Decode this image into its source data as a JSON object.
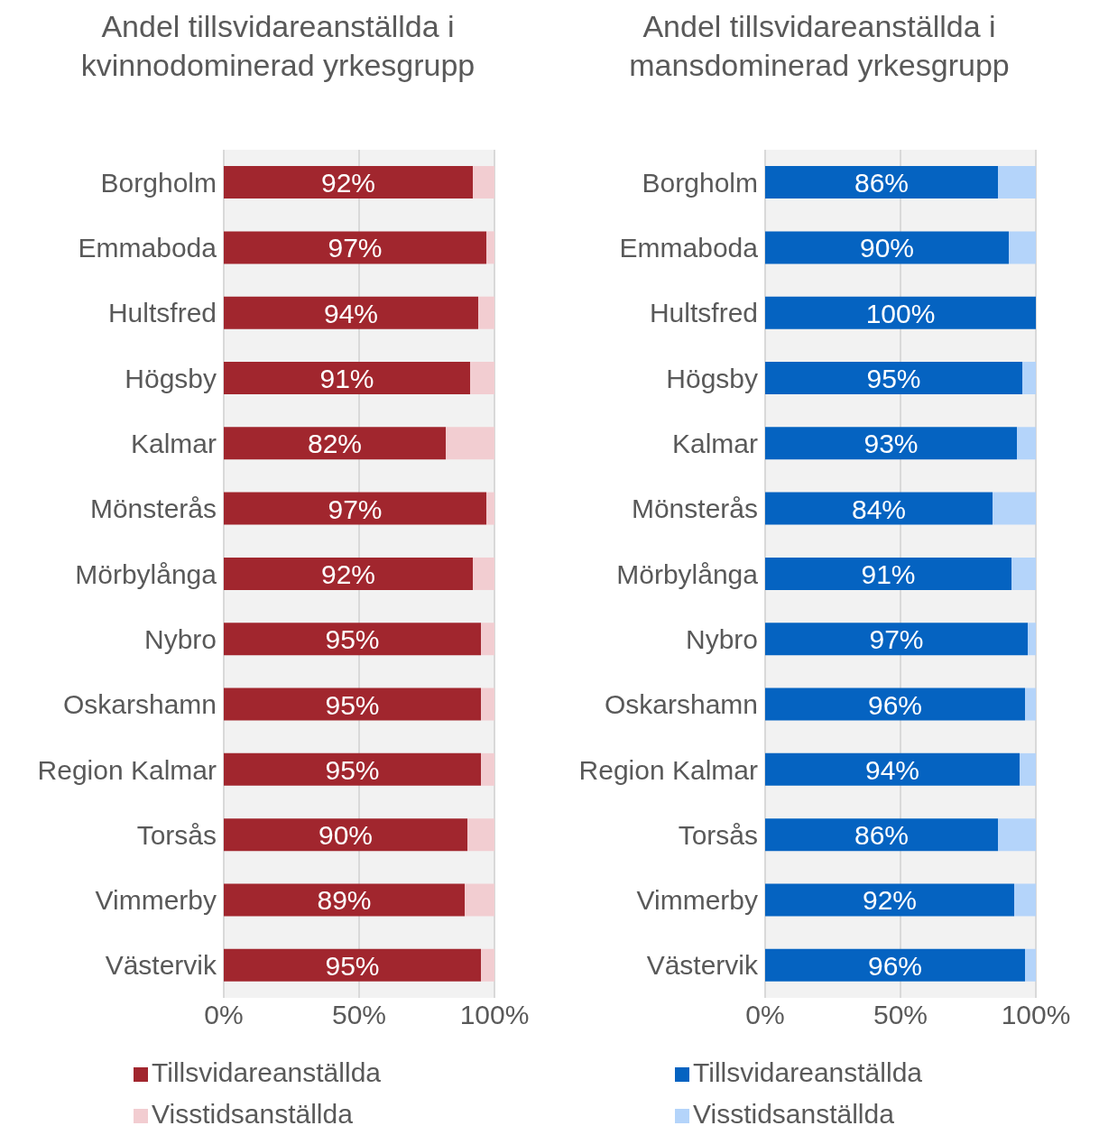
{
  "chart_data": [
    {
      "type": "bar",
      "orientation": "horizontal",
      "stacked": true,
      "title": "Andel tillsvidareanställda i kvinnodominerad yrkesgrupp",
      "categories": [
        "Borgholm",
        "Emmaboda",
        "Hultsfred",
        "Högsby",
        "Kalmar",
        "Mönsterås",
        "Mörbylånga",
        "Nybro",
        "Oskarshamn",
        "Region Kalmar",
        "Torsås",
        "Vimmerby",
        "Västervik"
      ],
      "series": [
        {
          "name": "Tillsvidareanställda",
          "color": "#a1262e",
          "values": [
            92,
            97,
            94,
            91,
            82,
            97,
            92,
            95,
            95,
            95,
            90,
            89,
            95
          ],
          "value_labels": [
            "92%",
            "97%",
            "94%",
            "91%",
            "82%",
            "97%",
            "92%",
            "95%",
            "95%",
            "95%",
            "90%",
            "89%",
            "95%"
          ]
        },
        {
          "name": "Visstidsanställda",
          "color": "#f2cdd1",
          "values": [
            8,
            3,
            6,
            9,
            18,
            3,
            8,
            5,
            5,
            5,
            10,
            11,
            5
          ]
        }
      ],
      "xlim": [
        0,
        100
      ],
      "xticks": [
        {
          "value": 0,
          "label": "0%"
        },
        {
          "value": 50,
          "label": "50%"
        },
        {
          "value": 100,
          "label": "100%"
        }
      ],
      "grid": "x",
      "legend": "bottom"
    },
    {
      "type": "bar",
      "orientation": "horizontal",
      "stacked": true,
      "title": "Andel tillsvidareanställda i mansdominerad yrkesgrupp",
      "categories": [
        "Borgholm",
        "Emmaboda",
        "Hultsfred",
        "Högsby",
        "Kalmar",
        "Mönsterås",
        "Mörbylånga",
        "Nybro",
        "Oskarshamn",
        "Region Kalmar",
        "Torsås",
        "Vimmerby",
        "Västervik"
      ],
      "series": [
        {
          "name": "Tillsvidareanställda",
          "color": "#0563c1",
          "values": [
            86,
            90,
            100,
            95,
            93,
            84,
            91,
            97,
            96,
            94,
            86,
            92,
            96
          ],
          "value_labels": [
            "86%",
            "90%",
            "100%",
            "95%",
            "93%",
            "84%",
            "91%",
            "97%",
            "96%",
            "94%",
            "86%",
            "92%",
            "96%"
          ]
        },
        {
          "name": "Visstidsanställda",
          "color": "#b4d4fa",
          "values": [
            14,
            10,
            0,
            5,
            7,
            16,
            9,
            3,
            4,
            6,
            14,
            8,
            4
          ]
        }
      ],
      "xlim": [
        0,
        100
      ],
      "xticks": [
        {
          "value": 0,
          "label": "0%"
        },
        {
          "value": 50,
          "label": "50%"
        },
        {
          "value": 100,
          "label": "100%"
        }
      ],
      "grid": "x",
      "legend": "bottom"
    }
  ]
}
